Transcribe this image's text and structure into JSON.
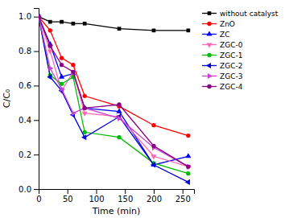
{
  "chart_data": {
    "type": "line",
    "x": [
      0,
      20,
      40,
      60,
      80,
      140,
      200,
      260
    ],
    "series": [
      {
        "name": "without catalyst",
        "color": "#000000",
        "marker": "square",
        "line_style": "solid",
        "values": [
          1.0,
          0.97,
          0.97,
          0.96,
          0.96,
          0.93,
          0.92,
          0.92
        ]
      },
      {
        "name": "ZnO",
        "color": "#ff0000",
        "marker": "circle",
        "line_style": "solid",
        "values": [
          1.0,
          0.92,
          0.76,
          0.72,
          0.54,
          0.48,
          0.37,
          0.31
        ]
      },
      {
        "name": "ZC",
        "color": "#0000ff",
        "marker": "triangle-up",
        "line_style": "solid",
        "values": [
          1.0,
          0.84,
          0.65,
          0.67,
          0.47,
          0.45,
          0.14,
          0.19
        ]
      },
      {
        "name": "ZGC-0",
        "color": "#ff69b4",
        "marker": "triangle-down",
        "line_style": "solid",
        "values": [
          1.0,
          0.8,
          0.57,
          0.68,
          0.44,
          0.42,
          0.19,
          0.13
        ]
      },
      {
        "name": "ZGC-1",
        "color": "#00bb00",
        "marker": "circle",
        "line_style": "solid",
        "values": [
          1.0,
          0.66,
          0.61,
          0.65,
          0.33,
          0.3,
          0.15,
          0.09
        ]
      },
      {
        "name": "ZGC-2",
        "color": "#0000dd",
        "marker": "triangle-left",
        "line_style": "solid",
        "values": [
          1.0,
          0.65,
          0.57,
          0.43,
          0.3,
          0.42,
          0.14,
          0.04
        ]
      },
      {
        "name": "ZGC-3",
        "color": "#cc44cc",
        "marker": "triangle-right",
        "line_style": "solid",
        "values": [
          1.0,
          0.7,
          0.58,
          0.44,
          0.47,
          0.41,
          0.24,
          0.13
        ]
      },
      {
        "name": "ZGC-4",
        "color": "#880088",
        "marker": "circle",
        "line_style": "solid",
        "values": [
          1.0,
          0.83,
          0.72,
          0.68,
          0.47,
          0.49,
          0.25,
          0.13
        ]
      }
    ],
    "xlabel": "Time (min)",
    "ylabel": "C/C₀",
    "xlim": [
      0,
      270
    ],
    "ylim": [
      0.0,
      1.05
    ],
    "xticks": [
      0,
      50,
      100,
      150,
      200,
      250
    ],
    "yticks": [
      {
        "value": 0.0,
        "label": "0.0"
      },
      0.2,
      0.4,
      0.6,
      0.8,
      {
        "value": 1.0,
        "label": "1.0"
      }
    ],
    "grid": false,
    "legend": "upper right"
  }
}
